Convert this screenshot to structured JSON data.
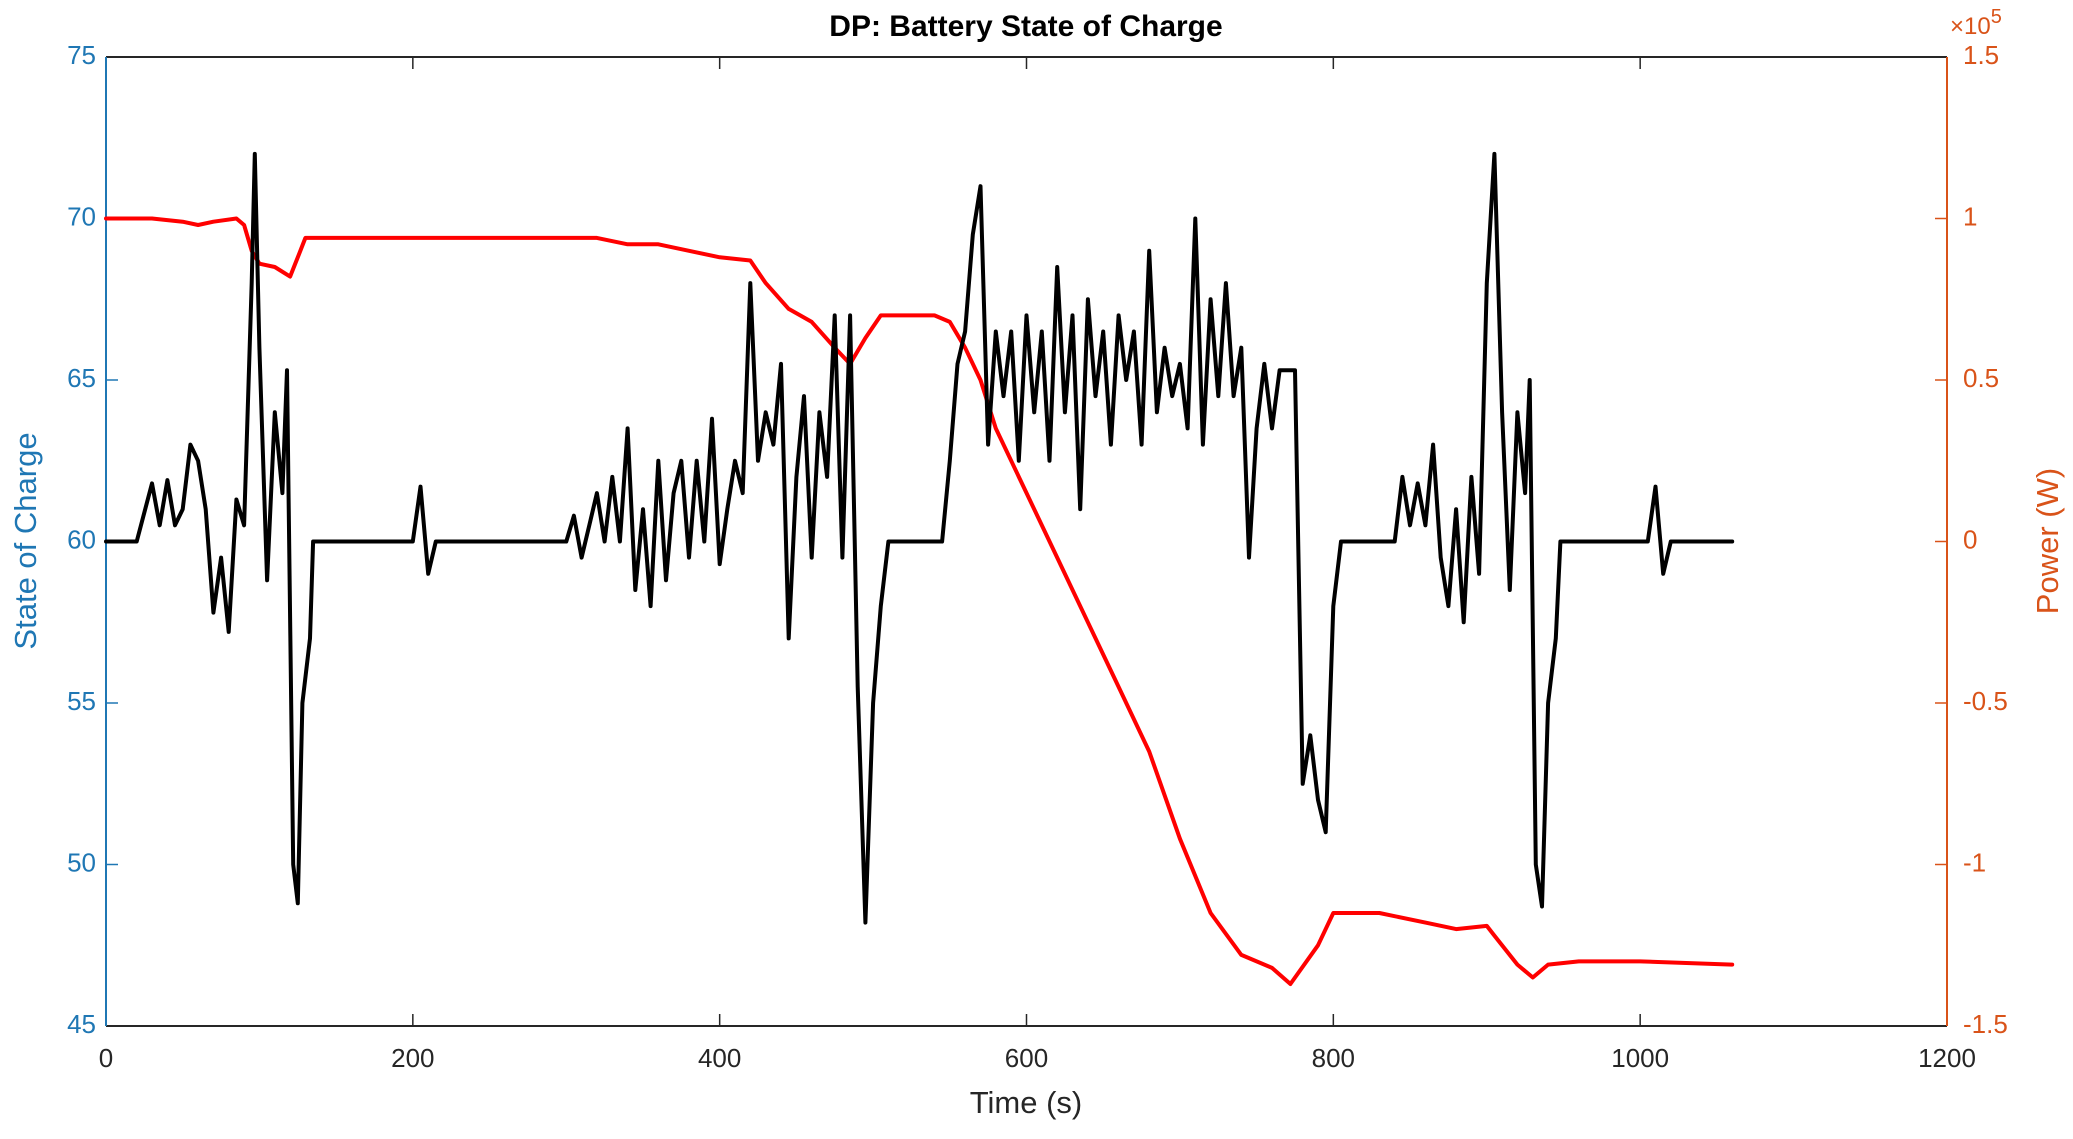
{
  "chart_data": {
    "type": "line",
    "title": "DP: Battery State of Charge",
    "xlabel": "Time (s)",
    "ylabel": "State of Charge",
    "y2label": "Power (W)",
    "y2_multiplier": {
      "base": "×10",
      "exponent": "5"
    },
    "xlim": [
      0,
      1200
    ],
    "xticks": [
      0,
      200,
      400,
      600,
      800,
      1000,
      1200
    ],
    "ylim": [
      45,
      75
    ],
    "yticks": [
      45,
      50,
      55,
      60,
      65,
      70,
      75
    ],
    "y2lim": [
      -1.5,
      1.5
    ],
    "y2ticks": [
      -1.5,
      -1,
      -0.5,
      0,
      0.5,
      1,
      1.5
    ],
    "ycolor": "#1f77b4",
    "y2color": "#d95319",
    "grid": false,
    "series": [
      {
        "color": "#ff0000",
        "x": [
          0,
          30,
          50,
          60,
          70,
          85,
          90,
          95,
          100,
          110,
          120,
          125,
          130,
          140,
          200,
          220,
          320,
          340,
          360,
          380,
          400,
          420,
          430,
          445,
          460,
          475,
          485,
          495,
          505,
          540,
          550,
          560,
          570,
          580,
          600,
          620,
          640,
          660,
          680,
          700,
          720,
          740,
          760,
          772,
          790,
          800,
          830,
          860,
          880,
          900,
          905,
          920,
          930,
          940,
          960,
          1000,
          1060
        ],
        "values": [
          70,
          70,
          69.9,
          69.8,
          69.9,
          70,
          69.8,
          69,
          68.6,
          68.5,
          68.2,
          68.8,
          69.4,
          69.4,
          69.4,
          69.4,
          69.4,
          69.2,
          69.2,
          69,
          68.8,
          68.7,
          68,
          67.2,
          66.8,
          66,
          65.5,
          66.3,
          67,
          67,
          66.8,
          66,
          65,
          63.5,
          61.5,
          59.5,
          57.5,
          55.5,
          53.5,
          50.8,
          48.5,
          47.2,
          46.8,
          46.3,
          47.5,
          48.5,
          48.5,
          48.2,
          48,
          48.1,
          47.8,
          46.9,
          46.5,
          46.9,
          47,
          47,
          46.9
        ]
      },
      {
        "color": "#000000",
        "axis": "y2",
        "x": [
          0,
          20,
          30,
          35,
          40,
          45,
          50,
          55,
          60,
          65,
          70,
          75,
          80,
          85,
          90,
          95,
          97,
          100,
          105,
          110,
          115,
          118,
          122,
          125,
          128,
          133,
          135,
          200,
          205,
          210,
          215,
          300,
          305,
          310,
          315,
          320,
          325,
          330,
          335,
          340,
          345,
          350,
          355,
          360,
          365,
          370,
          375,
          380,
          385,
          390,
          395,
          400,
          405,
          410,
          415,
          420,
          425,
          430,
          435,
          440,
          445,
          450,
          455,
          460,
          465,
          470,
          475,
          480,
          485,
          490,
          495,
          500,
          505,
          510,
          545,
          550,
          555,
          560,
          565,
          570,
          575,
          580,
          585,
          590,
          595,
          600,
          605,
          610,
          615,
          620,
          625,
          630,
          635,
          640,
          645,
          650,
          655,
          660,
          665,
          670,
          675,
          680,
          685,
          690,
          695,
          700,
          705,
          710,
          715,
          720,
          725,
          730,
          735,
          740,
          745,
          750,
          755,
          760,
          765,
          775,
          780,
          785,
          790,
          795,
          800,
          805,
          840,
          845,
          850,
          855,
          860,
          865,
          870,
          875,
          880,
          885,
          890,
          895,
          900,
          905,
          910,
          915,
          920,
          925,
          928,
          932,
          936,
          940,
          945,
          948,
          1005,
          1010,
          1015,
          1020,
          1060
        ],
        "values": [
          0,
          0,
          0.18,
          0.05,
          0.19,
          0.05,
          0.1,
          0.3,
          0.25,
          0.1,
          -0.22,
          -0.05,
          -0.28,
          0.13,
          0.05,
          0.8,
          1.2,
          0.6,
          -0.12,
          0.4,
          0.15,
          0.53,
          -1,
          -1.12,
          -0.5,
          -0.3,
          0,
          0,
          0.17,
          -0.1,
          0,
          0,
          0.08,
          -0.05,
          0.05,
          0.15,
          0,
          0.2,
          0,
          0.35,
          -0.15,
          0.1,
          -0.2,
          0.25,
          -0.12,
          0.15,
          0.25,
          -0.05,
          0.25,
          0,
          0.38,
          -0.07,
          0.1,
          0.25,
          0.15,
          0.8,
          0.25,
          0.4,
          0.3,
          0.55,
          -0.3,
          0.2,
          0.45,
          -0.05,
          0.4,
          0.2,
          0.7,
          -0.05,
          0.7,
          -0.45,
          -1.18,
          -0.5,
          -0.2,
          0,
          0,
          0.25,
          0.55,
          0.65,
          0.95,
          1.1,
          0.3,
          0.65,
          0.45,
          0.65,
          0.25,
          0.7,
          0.4,
          0.65,
          0.25,
          0.85,
          0.4,
          0.7,
          0.1,
          0.75,
          0.45,
          0.65,
          0.3,
          0.7,
          0.5,
          0.65,
          0.3,
          0.9,
          0.4,
          0.6,
          0.45,
          0.55,
          0.35,
          1,
          0.3,
          0.75,
          0.45,
          0.8,
          0.45,
          0.6,
          -0.05,
          0.35,
          0.55,
          0.35,
          0.53,
          0.53,
          -0.75,
          -0.6,
          -0.8,
          -0.9,
          -0.2,
          0,
          0,
          0.2,
          0.05,
          0.18,
          0.05,
          0.3,
          -0.05,
          -0.2,
          0.1,
          -0.25,
          0.2,
          -0.1,
          0.8,
          1.2,
          0.4,
          -0.15,
          0.4,
          0.15,
          0.5,
          -1,
          -1.13,
          -0.5,
          -0.3,
          0,
          0,
          0.17,
          -0.1,
          0,
          0
        ]
      }
    ]
  }
}
